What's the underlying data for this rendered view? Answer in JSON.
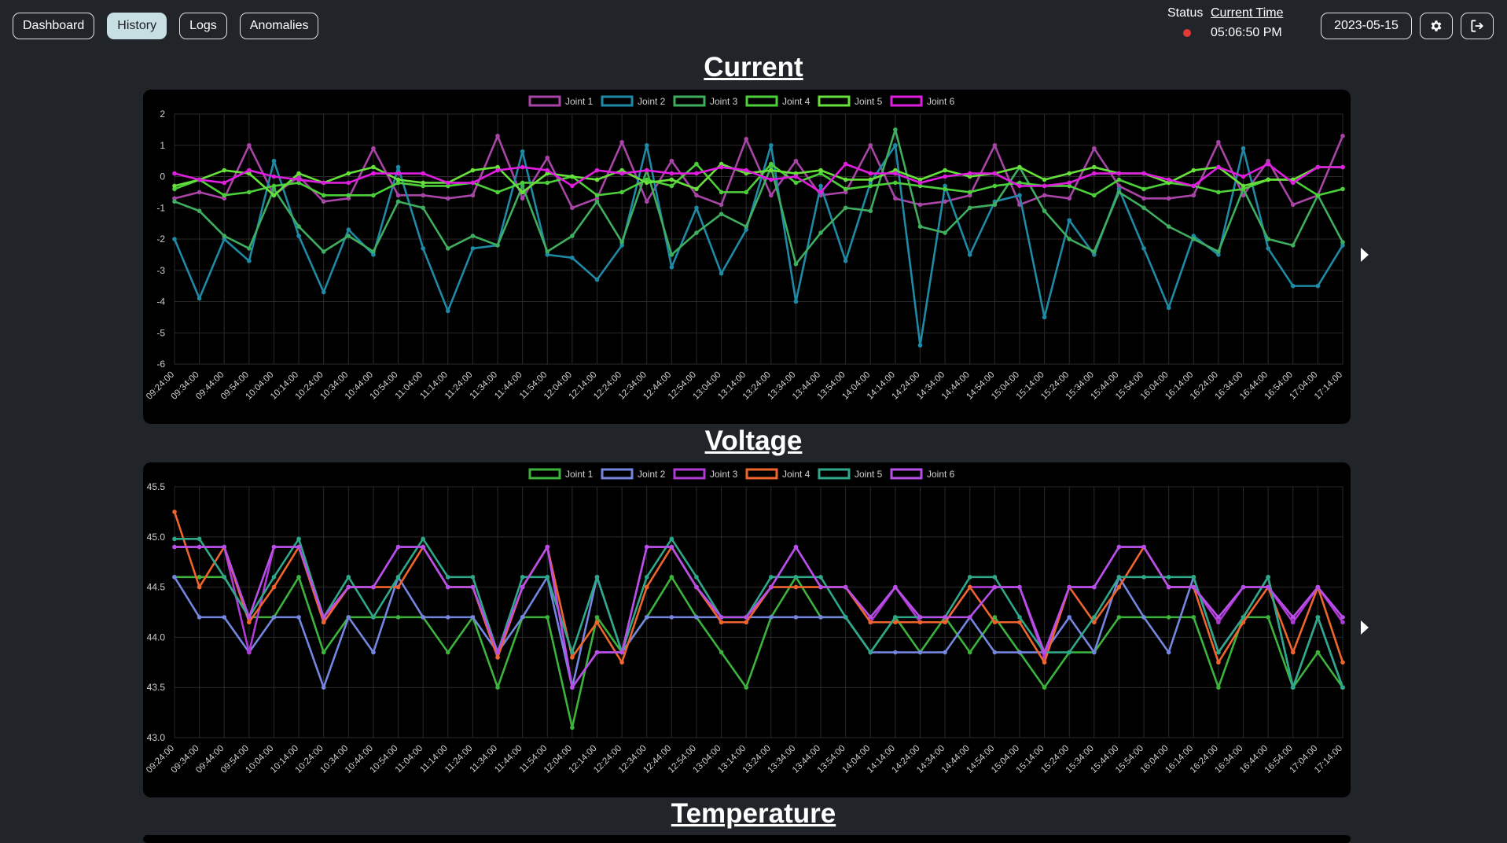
{
  "nav": {
    "items": [
      {
        "label": "Dashboard",
        "active": false
      },
      {
        "label": "History",
        "active": true
      },
      {
        "label": "Logs",
        "active": false
      },
      {
        "label": "Anomalies",
        "active": false
      }
    ]
  },
  "status": {
    "label": "Status",
    "indicator_color": "#e53935"
  },
  "clock": {
    "label": "Current Time",
    "value": "05:06:50 PM"
  },
  "date": {
    "value": "2023-05-15"
  },
  "icons": {
    "settings": "gear-icon",
    "logout": "logout-icon",
    "next": "chevron-right-icon"
  },
  "sections": {
    "current": "Current",
    "voltage": "Voltage",
    "temperature": "Temperature"
  },
  "chart_data": [
    {
      "type": "line",
      "title": "",
      "x": [
        "09:24:00",
        "09:34:00",
        "09:44:00",
        "09:54:00",
        "10:04:00",
        "10:14:00",
        "10:24:00",
        "10:34:00",
        "10:44:00",
        "10:54:00",
        "11:04:00",
        "11:14:00",
        "11:24:00",
        "11:34:00",
        "11:44:00",
        "11:54:00",
        "12:04:00",
        "12:14:00",
        "12:24:00",
        "12:34:00",
        "12:44:00",
        "12:54:00",
        "13:04:00",
        "13:14:00",
        "13:24:00",
        "13:34:00",
        "13:44:00",
        "13:54:00",
        "14:04:00",
        "14:14:00",
        "14:24:00",
        "14:34:00",
        "14:44:00",
        "14:54:00",
        "15:04:00",
        "15:14:00",
        "15:24:00",
        "15:34:00",
        "15:44:00",
        "15:54:00",
        "16:04:00",
        "16:14:00",
        "16:24:00",
        "16:34:00",
        "16:44:00",
        "16:54:00",
        "17:04:00",
        "17:14:00"
      ],
      "ylim": [
        -6,
        2
      ],
      "yticks": [
        2,
        1,
        0,
        -1,
        -2,
        -3,
        -4,
        -5,
        -6
      ],
      "grid": true,
      "legend": "top-center",
      "series": [
        {
          "name": "Joint 1",
          "color": "#a845a6",
          "values": [
            -0.7,
            -0.5,
            -0.7,
            1.0,
            -0.6,
            0.0,
            -0.8,
            -0.7,
            0.9,
            -0.6,
            -0.6,
            -0.7,
            -0.6,
            1.3,
            -0.7,
            0.6,
            -1.0,
            -0.7,
            1.1,
            -0.8,
            0.5,
            -0.6,
            -0.9,
            1.2,
            -0.6,
            0.5,
            -0.6,
            -0.5,
            1.0,
            -0.7,
            -0.9,
            -0.8,
            -0.6,
            1.0,
            -0.9,
            -0.6,
            -0.7,
            0.9,
            -0.3,
            -0.7,
            -0.7,
            -0.6,
            1.1,
            -0.6,
            0.5,
            -0.9,
            -0.6,
            1.3
          ]
        },
        {
          "name": "Joint 2",
          "color": "#1f8aa6",
          "values": [
            -2.0,
            -3.9,
            -2.0,
            -2.7,
            0.5,
            -1.9,
            -3.7,
            -1.7,
            -2.5,
            0.3,
            -2.3,
            -4.3,
            -2.3,
            -2.2,
            0.8,
            -2.5,
            -2.6,
            -3.3,
            -2.2,
            1.0,
            -2.9,
            -1.0,
            -3.1,
            -1.7,
            1.0,
            -4.0,
            -0.3,
            -2.7,
            -0.2,
            1.0,
            -5.4,
            -0.3,
            -2.5,
            -0.8,
            -0.6,
            -4.5,
            -1.4,
            -2.5,
            -0.4,
            -2.3,
            -4.2,
            -1.9,
            -2.5,
            0.9,
            -2.3,
            -3.5,
            -3.5,
            -2.2
          ]
        },
        {
          "name": "Joint 3",
          "color": "#3fae5f",
          "values": [
            -0.8,
            -1.1,
            -1.9,
            -2.3,
            -0.4,
            -1.6,
            -2.4,
            -1.9,
            -2.4,
            -0.8,
            -1.0,
            -2.3,
            -1.9,
            -2.2,
            -0.3,
            -2.4,
            -1.9,
            -0.8,
            -2.1,
            0.2,
            -2.5,
            -1.8,
            -1.2,
            -1.6,
            0.3,
            -2.8,
            -1.8,
            -1.0,
            -1.1,
            1.5,
            -1.6,
            -1.8,
            -1.0,
            -0.9,
            0.3,
            -1.1,
            -2.0,
            -2.4,
            -0.5,
            -1.0,
            -1.6,
            -2.0,
            -2.4,
            -0.4,
            -2.0,
            -2.2,
            -0.6,
            -2.1
          ]
        },
        {
          "name": "Joint 4",
          "color": "#4ccf3a",
          "values": [
            -0.4,
            -0.1,
            -0.6,
            -0.5,
            -0.3,
            -0.2,
            -0.6,
            -0.6,
            -0.6,
            -0.2,
            -0.3,
            -0.3,
            -0.2,
            -0.5,
            -0.2,
            -0.2,
            0.0,
            -0.6,
            -0.5,
            -0.1,
            -0.3,
            0.4,
            -0.5,
            -0.5,
            0.4,
            -0.2,
            0.1,
            -0.4,
            -0.3,
            -0.2,
            -0.3,
            -0.4,
            -0.5,
            -0.3,
            -0.2,
            -0.3,
            -0.3,
            -0.6,
            -0.1,
            -0.4,
            -0.2,
            -0.3,
            -0.5,
            -0.4,
            -0.1,
            -0.1,
            -0.6,
            -0.4
          ]
        },
        {
          "name": "Joint 5",
          "color": "#66e03a",
          "values": [
            -0.3,
            -0.1,
            0.2,
            0.1,
            -0.6,
            0.1,
            -0.2,
            0.1,
            0.3,
            -0.1,
            -0.2,
            -0.2,
            0.2,
            0.3,
            -0.5,
            0.1,
            0.0,
            -0.1,
            0.2,
            -0.2,
            -0.1,
            -0.4,
            0.4,
            0.1,
            0.2,
            0.1,
            0.2,
            -0.1,
            -0.1,
            0.2,
            -0.1,
            0.2,
            0.0,
            0.1,
            0.3,
            -0.1,
            0.1,
            0.3,
            0.1,
            0.1,
            -0.2,
            0.2,
            0.3,
            -0.3,
            -0.1,
            -0.1,
            0.3,
            0.3
          ]
        },
        {
          "name": "Joint 6",
          "color": "#e01ee0",
          "values": [
            0.1,
            -0.1,
            -0.2,
            0.2,
            0.0,
            -0.1,
            -0.2,
            -0.2,
            0.1,
            0.1,
            0.1,
            -0.2,
            -0.2,
            0.2,
            0.3,
            0.2,
            -0.3,
            0.2,
            0.1,
            0.2,
            0.1,
            0.1,
            0.3,
            0.2,
            -0.1,
            0.0,
            -0.5,
            0.4,
            0.1,
            0.1,
            -0.2,
            0.0,
            0.1,
            0.1,
            -0.3,
            -0.3,
            -0.2,
            0.1,
            0.1,
            0.1,
            -0.1,
            -0.3,
            0.3,
            0.0,
            0.4,
            -0.2,
            0.3,
            0.3
          ]
        }
      ]
    },
    {
      "type": "line",
      "title": "",
      "x": [
        "09:24:00",
        "09:34:00",
        "09:44:00",
        "09:54:00",
        "10:04:00",
        "10:14:00",
        "10:24:00",
        "10:34:00",
        "10:44:00",
        "10:54:00",
        "11:04:00",
        "11:14:00",
        "11:24:00",
        "11:34:00",
        "11:44:00",
        "11:54:00",
        "12:04:00",
        "12:14:00",
        "12:24:00",
        "12:34:00",
        "12:44:00",
        "12:54:00",
        "13:04:00",
        "13:14:00",
        "13:24:00",
        "13:34:00",
        "13:44:00",
        "13:54:00",
        "14:04:00",
        "14:14:00",
        "14:24:00",
        "14:34:00",
        "14:44:00",
        "14:54:00",
        "15:04:00",
        "15:14:00",
        "15:24:00",
        "15:34:00",
        "15:44:00",
        "15:54:00",
        "16:04:00",
        "16:14:00",
        "16:24:00",
        "16:34:00",
        "16:44:00",
        "16:54:00",
        "17:04:00",
        "17:14:00"
      ],
      "ylim": [
        43.0,
        45.5
      ],
      "yticks": [
        "45.5",
        "45.0",
        "44.5",
        "44.0",
        "43.5",
        "43.0"
      ],
      "grid": true,
      "legend": "top-center",
      "series": [
        {
          "name": "Joint 1",
          "color": "#3cb43c",
          "values": [
            44.6,
            44.6,
            44.6,
            44.2,
            44.2,
            44.6,
            43.85,
            44.2,
            44.2,
            44.2,
            44.2,
            43.85,
            44.2,
            43.5,
            44.2,
            44.2,
            43.1,
            44.2,
            43.85,
            44.2,
            44.6,
            44.2,
            43.85,
            43.5,
            44.2,
            44.6,
            44.2,
            44.2,
            43.85,
            44.2,
            43.85,
            44.2,
            43.85,
            44.2,
            43.85,
            43.5,
            43.85,
            43.85,
            44.2,
            44.2,
            44.2,
            44.2,
            43.5,
            44.2,
            44.2,
            43.5,
            43.85,
            43.5
          ]
        },
        {
          "name": "Joint 2",
          "color": "#7586e0",
          "values": [
            44.6,
            44.2,
            44.2,
            43.85,
            44.2,
            44.2,
            43.5,
            44.2,
            43.85,
            44.6,
            44.2,
            44.2,
            44.2,
            43.85,
            44.2,
            44.6,
            43.5,
            44.6,
            43.85,
            44.2,
            44.2,
            44.2,
            44.2,
            44.2,
            44.2,
            44.2,
            44.2,
            44.2,
            43.85,
            43.85,
            43.85,
            43.85,
            44.2,
            43.85,
            43.85,
            43.85,
            44.2,
            43.85,
            44.6,
            44.2,
            43.85,
            44.6,
            43.85,
            44.2,
            44.6,
            43.5,
            44.2,
            43.5
          ]
        },
        {
          "name": "Joint 3",
          "color": "#b13ad6",
          "values": [
            44.9,
            44.9,
            44.9,
            43.85,
            44.9,
            44.9,
            44.15,
            44.5,
            44.5,
            44.9,
            44.9,
            44.5,
            44.5,
            43.8,
            44.5,
            44.9,
            43.5,
            43.85,
            43.85,
            44.9,
            44.9,
            44.5,
            44.15,
            44.15,
            44.5,
            44.9,
            44.5,
            44.5,
            44.15,
            44.5,
            44.15,
            44.15,
            44.5,
            44.5,
            44.5,
            43.8,
            44.5,
            44.5,
            44.9,
            44.9,
            44.5,
            44.5,
            44.15,
            44.5,
            44.5,
            44.15,
            44.5,
            44.15
          ]
        },
        {
          "name": "Joint 4",
          "color": "#f0642d",
          "values": [
            45.25,
            44.5,
            44.9,
            44.15,
            44.5,
            44.9,
            44.15,
            44.5,
            44.5,
            44.5,
            44.9,
            44.5,
            44.5,
            43.8,
            44.5,
            44.9,
            43.8,
            44.15,
            43.75,
            44.5,
            44.9,
            44.5,
            44.15,
            44.15,
            44.5,
            44.5,
            44.5,
            44.5,
            44.15,
            44.15,
            44.15,
            44.15,
            44.5,
            44.15,
            44.15,
            43.75,
            44.5,
            44.15,
            44.5,
            44.9,
            44.5,
            44.5,
            43.75,
            44.15,
            44.5,
            43.85,
            44.5,
            43.75
          ]
        },
        {
          "name": "Joint 5",
          "color": "#2fa88a",
          "values": [
            44.98,
            44.98,
            44.6,
            44.2,
            44.6,
            44.98,
            44.2,
            44.6,
            44.2,
            44.6,
            44.98,
            44.6,
            44.6,
            43.85,
            44.6,
            44.6,
            43.85,
            44.6,
            43.85,
            44.6,
            44.98,
            44.6,
            44.2,
            44.2,
            44.6,
            44.6,
            44.6,
            44.2,
            43.85,
            44.2,
            44.2,
            44.2,
            44.6,
            44.6,
            44.2,
            43.85,
            43.85,
            44.2,
            44.6,
            44.6,
            44.6,
            44.6,
            43.85,
            44.2,
            44.6,
            43.5,
            44.2,
            43.5
          ]
        },
        {
          "name": "Joint 6",
          "color": "#b74fe8",
          "values": [
            44.9,
            44.9,
            44.9,
            44.2,
            44.9,
            44.9,
            44.2,
            44.5,
            44.5,
            44.9,
            44.9,
            44.5,
            44.5,
            43.85,
            44.5,
            44.9,
            43.5,
            43.85,
            43.85,
            44.9,
            44.9,
            44.5,
            44.2,
            44.2,
            44.5,
            44.9,
            44.5,
            44.5,
            44.2,
            44.5,
            44.2,
            44.2,
            44.2,
            44.5,
            44.5,
            43.85,
            44.5,
            44.5,
            44.9,
            44.9,
            44.5,
            44.5,
            44.2,
            44.5,
            44.5,
            44.2,
            44.5,
            44.2
          ]
        }
      ]
    }
  ]
}
